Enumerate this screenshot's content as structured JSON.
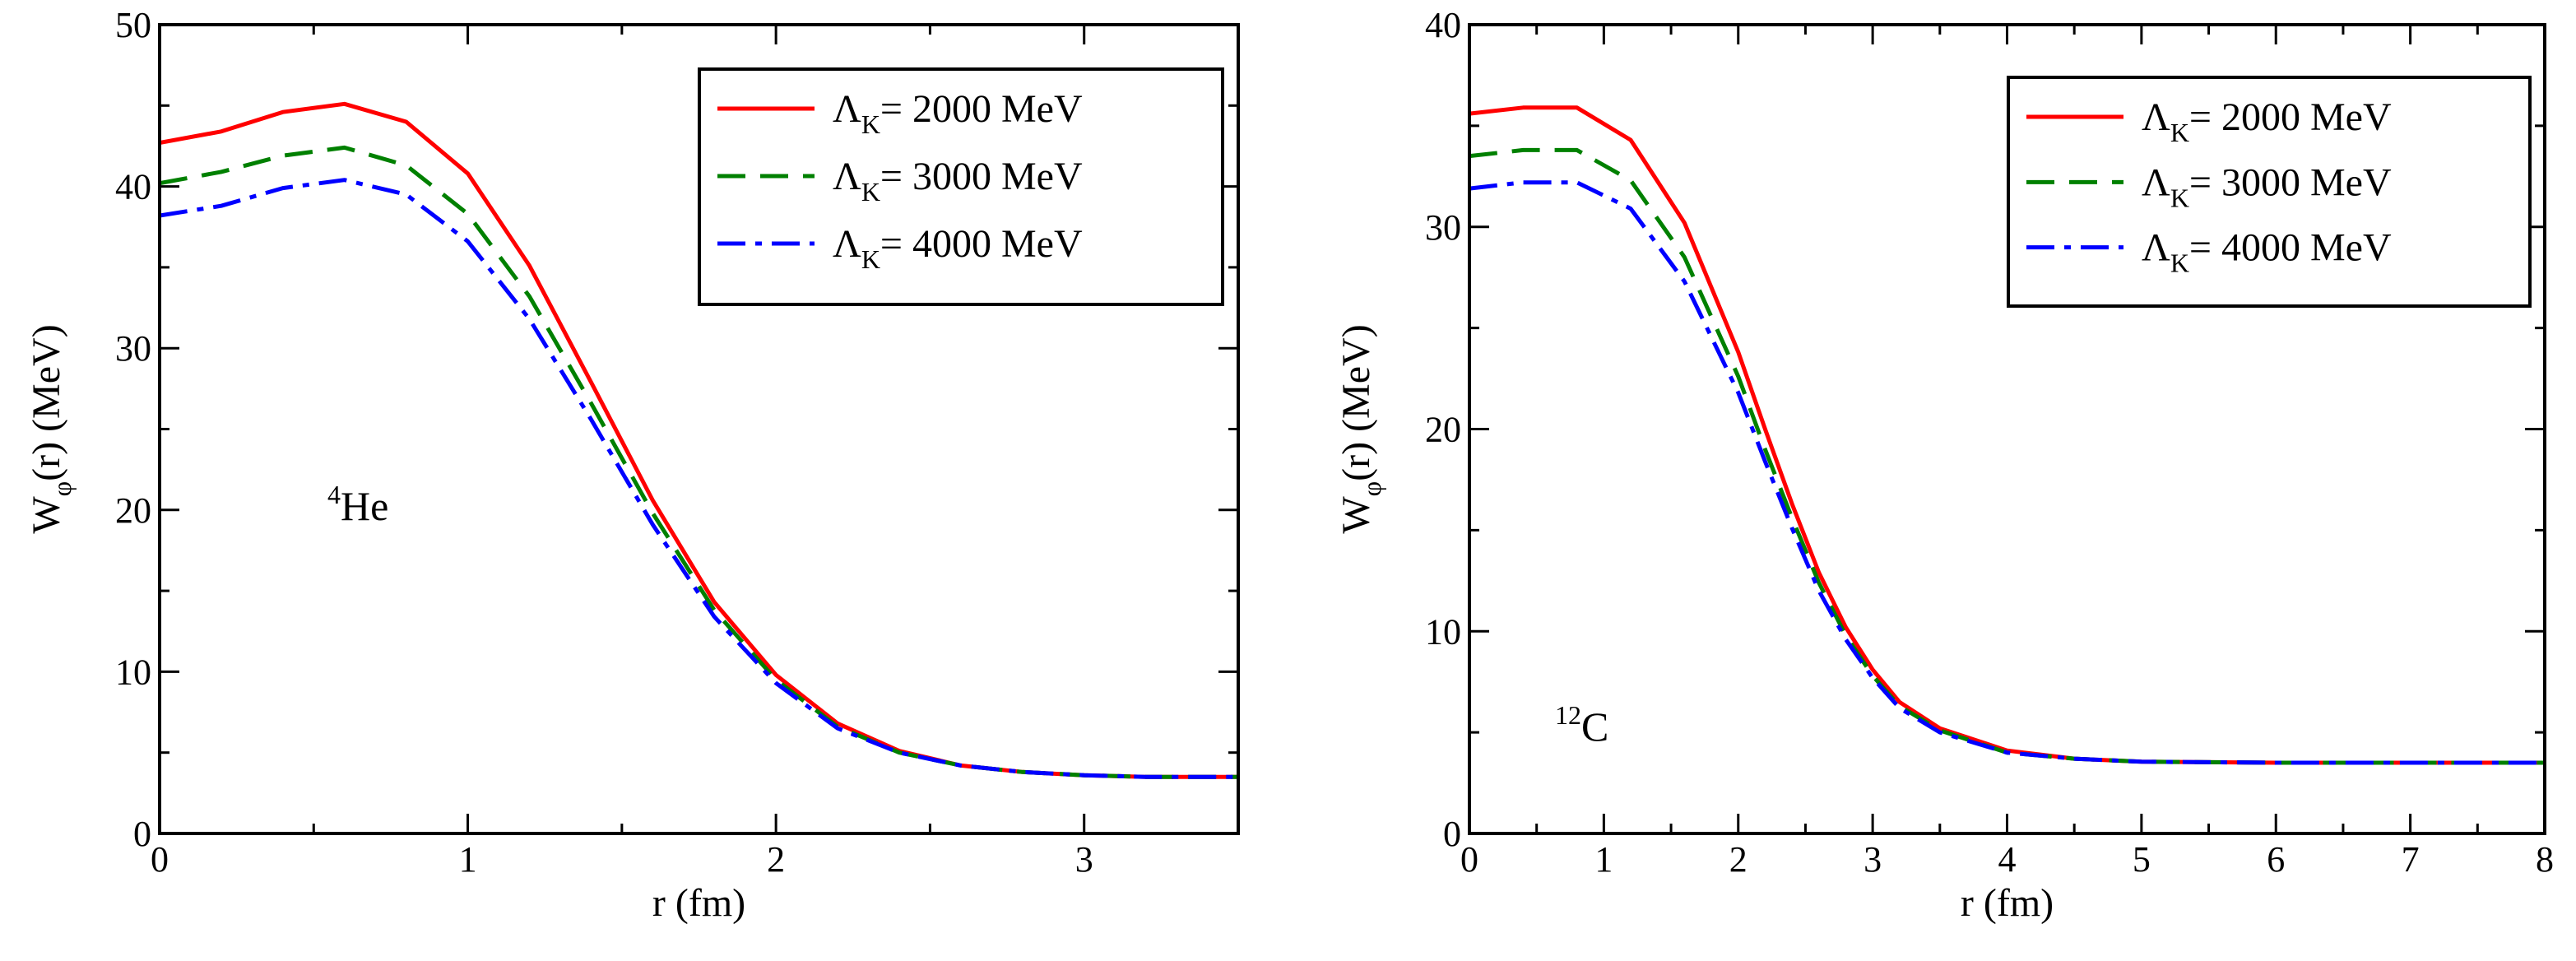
{
  "chart_data": [
    {
      "type": "line",
      "panel": "left",
      "label_main": "He",
      "label_sup": "4",
      "xlabel": "r (fm)",
      "ylabel_main": "W",
      "ylabel_sub": "φ",
      "ylabel_rest": "(r) (MeV)",
      "xlim": [
        0,
        3.5
      ],
      "ylim": [
        0,
        50
      ],
      "xticks": [
        0,
        1,
        2,
        3
      ],
      "yticks": [
        0,
        10,
        20,
        30,
        40,
        50
      ],
      "xtick_labels": [
        "0",
        "1",
        "2",
        "3"
      ],
      "ytick_labels": [
        "0",
        "10",
        "20",
        "30",
        "40",
        "50"
      ],
      "legend_position": "top-right",
      "series": [
        {
          "name": "2000 MeV",
          "legend_symbol": "Λ",
          "legend_sub": "K",
          "legend_text": "= 2000 MeV",
          "color": "#ff0000",
          "style": "solid",
          "x": [
            0,
            0.2,
            0.4,
            0.6,
            0.8,
            1.0,
            1.2,
            1.4,
            1.6,
            1.8,
            2.0,
            2.2,
            2.4,
            2.6,
            2.8,
            3.0,
            3.2,
            3.5
          ],
          "y": [
            42.7,
            43.4,
            44.6,
            45.1,
            44.0,
            40.8,
            35.1,
            27.9,
            20.6,
            14.3,
            9.8,
            6.8,
            5.1,
            4.2,
            3.8,
            3.6,
            3.5,
            3.5
          ]
        },
        {
          "name": "3000 MeV",
          "legend_symbol": "Λ",
          "legend_sub": "K",
          "legend_text": "= 3000 MeV",
          "color": "#008000",
          "style": "dashed",
          "x": [
            0,
            0.2,
            0.4,
            0.6,
            0.8,
            1.0,
            1.2,
            1.4,
            1.6,
            1.8,
            2.0,
            2.2,
            2.4,
            2.6,
            2.8,
            3.0,
            3.2,
            3.5
          ],
          "y": [
            40.2,
            40.9,
            41.9,
            42.4,
            41.3,
            38.3,
            33.2,
            26.6,
            19.8,
            13.8,
            9.5,
            6.6,
            5.0,
            4.2,
            3.8,
            3.6,
            3.5,
            3.5
          ]
        },
        {
          "name": "4000 MeV",
          "legend_symbol": "Λ",
          "legend_sub": "K",
          "legend_text": "= 4000 MeV",
          "color": "#0000ff",
          "style": "dashdot",
          "x": [
            0,
            0.2,
            0.4,
            0.6,
            0.8,
            1.0,
            1.2,
            1.4,
            1.6,
            1.8,
            2.0,
            2.2,
            2.4,
            2.6,
            2.8,
            3.0,
            3.2,
            3.5
          ],
          "y": [
            38.2,
            38.8,
            39.9,
            40.4,
            39.5,
            36.6,
            31.8,
            25.6,
            19.1,
            13.4,
            9.3,
            6.5,
            5.0,
            4.2,
            3.8,
            3.6,
            3.5,
            3.5
          ]
        }
      ]
    },
    {
      "type": "line",
      "panel": "right",
      "label_main": "C",
      "label_sup": "12",
      "xlabel": "r (fm)",
      "ylabel_main": "W",
      "ylabel_sub": "φ",
      "ylabel_rest": "(r) (MeV)",
      "xlim": [
        0,
        8
      ],
      "ylim": [
        0,
        40
      ],
      "xticks": [
        0,
        1,
        2,
        3,
        4,
        5,
        6,
        7,
        8
      ],
      "yticks": [
        0,
        10,
        20,
        30,
        40
      ],
      "xtick_labels": [
        "0",
        "1",
        "2",
        "3",
        "4",
        "5",
        "6",
        "7",
        "8"
      ],
      "ytick_labels": [
        "0",
        "10",
        "20",
        "30",
        "40"
      ],
      "legend_position": "top-right",
      "series": [
        {
          "name": "2000 MeV",
          "legend_symbol": "Λ",
          "legend_sub": "K",
          "legend_text": "= 2000 MeV",
          "color": "#ff0000",
          "style": "solid",
          "x": [
            0,
            0.4,
            0.8,
            1.2,
            1.6,
            2.0,
            2.2,
            2.4,
            2.6,
            2.8,
            3.0,
            3.2,
            3.5,
            4.0,
            4.5,
            5.0,
            6.0,
            7.0,
            8.0
          ],
          "y": [
            35.6,
            35.9,
            35.9,
            34.3,
            30.2,
            23.8,
            20.0,
            16.3,
            12.9,
            10.2,
            8.1,
            6.5,
            5.2,
            4.1,
            3.7,
            3.55,
            3.5,
            3.5,
            3.5
          ]
        },
        {
          "name": "3000 MeV",
          "legend_symbol": "Λ",
          "legend_sub": "K",
          "legend_text": "= 3000 MeV",
          "color": "#008000",
          "style": "dashed",
          "x": [
            0,
            0.4,
            0.8,
            1.2,
            1.6,
            2.0,
            2.2,
            2.4,
            2.6,
            2.8,
            3.0,
            3.2,
            3.5,
            4.0,
            4.5,
            5.0,
            6.0,
            7.0,
            8.0
          ],
          "y": [
            33.5,
            33.8,
            33.8,
            32.3,
            28.5,
            22.6,
            19.0,
            15.6,
            12.4,
            9.8,
            7.8,
            6.3,
            5.1,
            4.0,
            3.7,
            3.55,
            3.5,
            3.5,
            3.5
          ]
        },
        {
          "name": "4000 MeV",
          "legend_symbol": "Λ",
          "legend_sub": "K",
          "legend_text": "= 4000 MeV",
          "color": "#0000ff",
          "style": "dashdot",
          "x": [
            0,
            0.4,
            0.8,
            1.2,
            1.6,
            2.0,
            2.2,
            2.4,
            2.6,
            2.8,
            3.0,
            3.2,
            3.5,
            4.0,
            4.5,
            5.0,
            6.0,
            7.0,
            8.0
          ],
          "y": [
            31.9,
            32.2,
            32.2,
            30.9,
            27.3,
            21.8,
            18.4,
            15.1,
            12.0,
            9.6,
            7.7,
            6.2,
            5.0,
            4.0,
            3.7,
            3.55,
            3.5,
            3.5,
            3.5
          ]
        }
      ]
    }
  ]
}
